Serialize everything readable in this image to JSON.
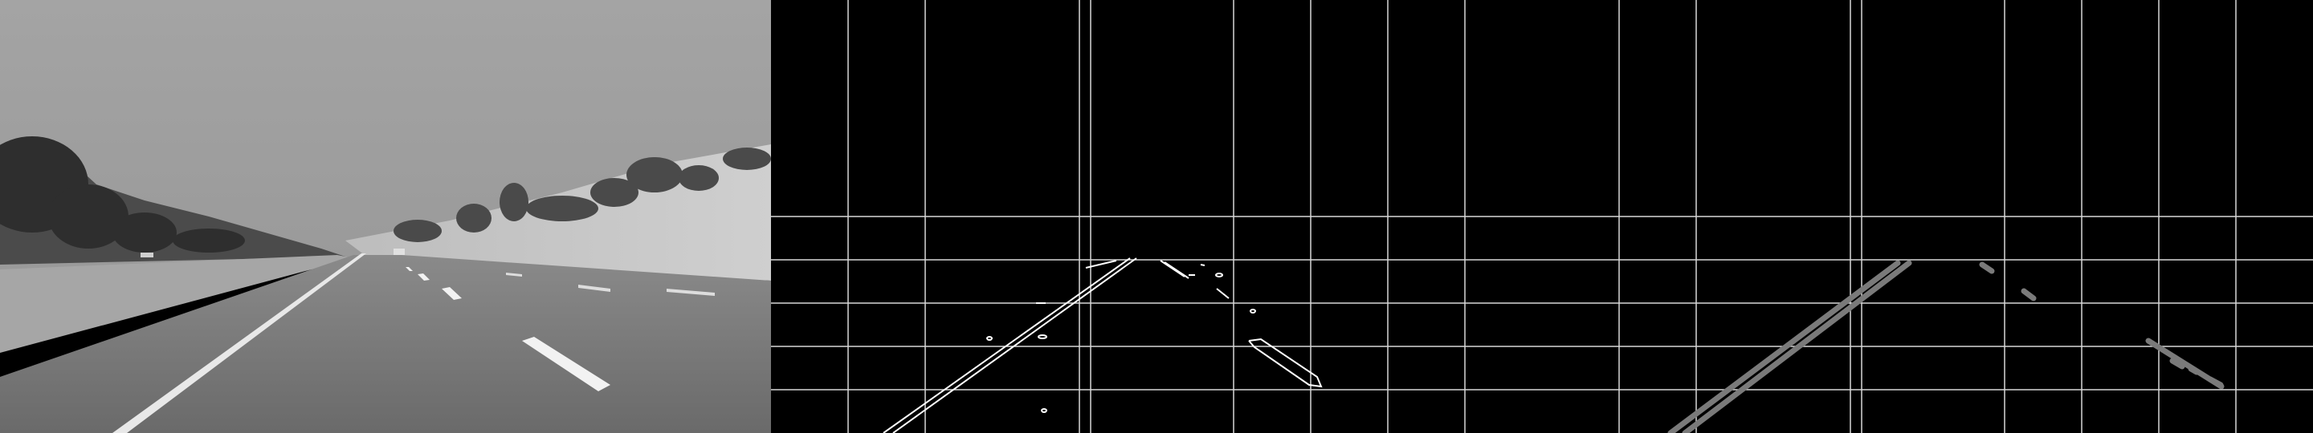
{
  "figure": {
    "panels": [
      {
        "id": "grayscale-road",
        "description_visible_text": ""
      },
      {
        "id": "canny-edges-grid",
        "description_visible_text": ""
      },
      {
        "id": "hough-lines-grid",
        "description_visible_text": ""
      }
    ],
    "colors": {
      "sky": "#9c9c9c",
      "road": "#6e6e6e",
      "grass": "#a9a9a9",
      "trees": "#3d3d3d",
      "edge": "#ffffff",
      "grid": "#d8d8d8",
      "hough_line": "#7a7a7a",
      "background": "#000000"
    }
  }
}
